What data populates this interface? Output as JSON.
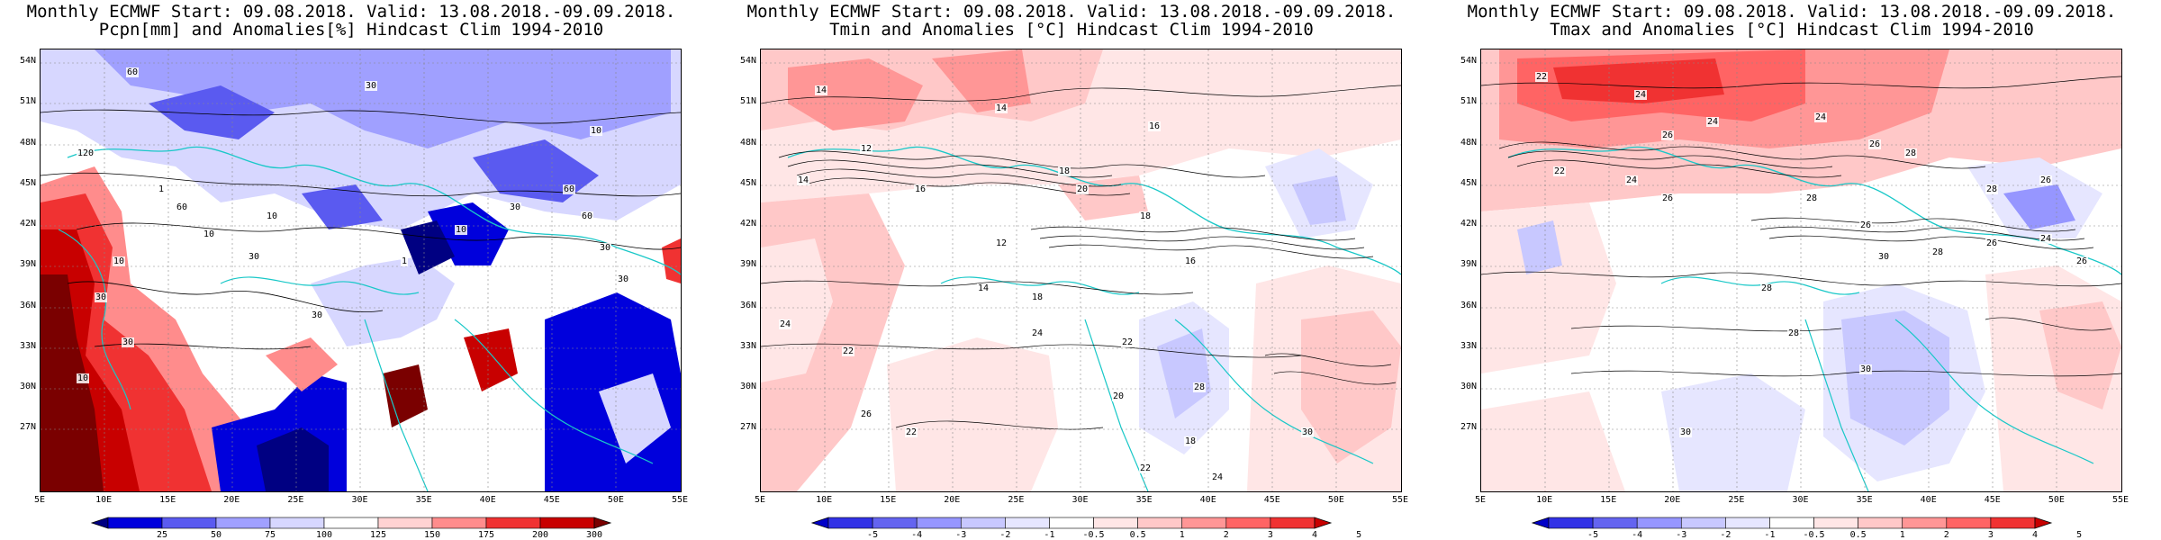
{
  "panels": [
    {
      "id": "pcpn",
      "title1": "Monthly ECMWF Start: 09.08.2018. Valid: 13.08.2018.-09.09.2018.",
      "title2": "Pcpn[mm] and Anomalies[%] Hindcast Clim 1994-2010",
      "lat_labels": [
        "54N",
        "51N",
        "48N",
        "45N",
        "42N",
        "39N",
        "36N",
        "33N",
        "30N",
        "27N"
      ],
      "lon_labels": [
        "5E",
        "10E",
        "15E",
        "20E",
        "25E",
        "30E",
        "35E",
        "40E",
        "45E",
        "50E",
        "55E"
      ],
      "colorbar_labels": [
        "25",
        "50",
        "75",
        "100",
        "125",
        "150",
        "175",
        "200",
        "300"
      ],
      "colorbar_colors": [
        "#000082",
        "#0000dc",
        "#5a5af0",
        "#a0a0ff",
        "#d7d7ff",
        "#ffffff",
        "#ffd2d2",
        "#ff8c8c",
        "#f03232",
        "#c80000",
        "#7a0000"
      ],
      "contour_labels": [
        "60",
        "30",
        "10",
        "120",
        "60",
        "30",
        "10",
        "30",
        "30",
        "60",
        "30",
        "10",
        "1",
        "10",
        "30",
        "30",
        "10",
        "1",
        "10",
        "60",
        "30"
      ]
    },
    {
      "id": "tmin",
      "title1": "Monthly ECMWF Start: 09.08.2018. Valid: 13.08.2018.-09.09.2018.",
      "title2": "Tmin and Anomalies [°C] Hindcast Clim 1994-2010",
      "lat_labels": [
        "54N",
        "51N",
        "48N",
        "45N",
        "42N",
        "39N",
        "36N",
        "33N",
        "30N",
        "27N"
      ],
      "lon_labels": [
        "5E",
        "10E",
        "15E",
        "20E",
        "25E",
        "30E",
        "35E",
        "40E",
        "45E",
        "50E",
        "55E"
      ],
      "colorbar_labels": [
        "-5",
        "-4",
        "-3",
        "-2",
        "-1",
        "-0.5",
        "0.5",
        "1",
        "2",
        "3",
        "4",
        "5"
      ],
      "colorbar_colors": [
        "#0000c8",
        "#3232e6",
        "#6464f0",
        "#9696ff",
        "#c8c8ff",
        "#e6e6ff",
        "#ffffff",
        "#ffe6e6",
        "#ffc8c8",
        "#ff9696",
        "#ff6464",
        "#f03232",
        "#c80000"
      ],
      "contour_labels": [
        "14",
        "14",
        "16",
        "12",
        "14",
        "18",
        "16",
        "20",
        "18",
        "12",
        "16",
        "18",
        "24",
        "22",
        "26",
        "20",
        "22",
        "22",
        "24",
        "28",
        "30",
        "18",
        "22",
        "24",
        "14"
      ]
    },
    {
      "id": "tmax",
      "title1": "Monthly ECMWF Start: 09.08.2018. Valid: 13.08.2018.-09.09.2018.",
      "title2": "Tmax and Anomalies [°C] Hindcast Clim 1994-2010",
      "lat_labels": [
        "54N",
        "51N",
        "48N",
        "45N",
        "42N",
        "39N",
        "36N",
        "33N",
        "30N",
        "27N"
      ],
      "lon_labels": [
        "5E",
        "10E",
        "15E",
        "20E",
        "25E",
        "30E",
        "35E",
        "40E",
        "45E",
        "50E",
        "55E"
      ],
      "colorbar_labels": [
        "-5",
        "-4",
        "-3",
        "-2",
        "-1",
        "-0.5",
        "0.5",
        "1",
        "2",
        "3",
        "4",
        "5"
      ],
      "colorbar_colors": [
        "#0000c8",
        "#3232e6",
        "#6464f0",
        "#9696ff",
        "#c8c8ff",
        "#e6e6ff",
        "#ffffff",
        "#ffe6e6",
        "#ffc8c8",
        "#ff9696",
        "#ff6464",
        "#f03232",
        "#c80000"
      ],
      "contour_labels": [
        "22",
        "24",
        "24",
        "26",
        "24",
        "26",
        "28",
        "28",
        "26",
        "22",
        "24",
        "26",
        "28",
        "26",
        "30",
        "28",
        "26",
        "28",
        "24",
        "26",
        "28",
        "30",
        "30"
      ]
    }
  ]
}
